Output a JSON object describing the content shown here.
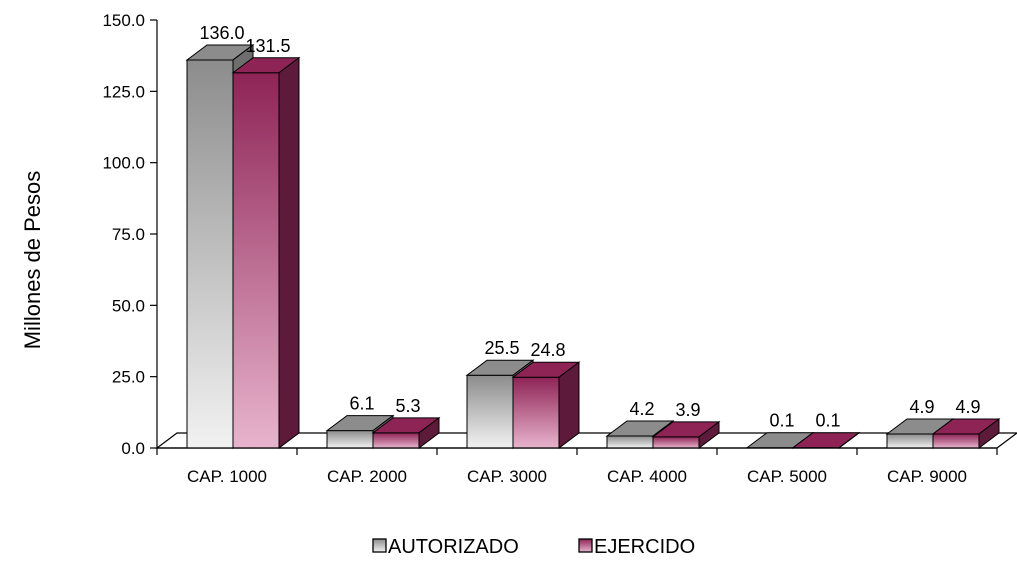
{
  "chart_data": {
    "type": "bar",
    "ylabel": "Millones de Pesos",
    "ylim": [
      0,
      150
    ],
    "yticks": [
      "0.0",
      "25.0",
      "50.0",
      "75.0",
      "100.0",
      "125.0",
      "150.0"
    ],
    "categories": [
      "CAP. 1000",
      "CAP. 2000",
      "CAP. 3000",
      "CAP. 4000",
      "CAP. 5000",
      "CAP. 9000"
    ],
    "series": [
      {
        "name": "AUTORIZADO",
        "values": [
          136.0,
          6.1,
          25.5,
          4.2,
          0.1,
          4.9
        ],
        "labels": [
          "136.0",
          "6.1",
          "25.5",
          "4.2",
          "0.1",
          "4.9"
        ],
        "color_top": "#8c8c8c",
        "color_bottom": "#f2f2f2",
        "color_side": "#6e6e6e"
      },
      {
        "name": "EJERCIDO",
        "values": [
          131.5,
          5.3,
          24.8,
          3.9,
          0.1,
          4.9
        ],
        "labels": [
          "131.5",
          "5.3",
          "24.8",
          "3.9",
          "0.1",
          "4.9"
        ],
        "color_top": "#8e2456",
        "color_bottom": "#e8b4cd",
        "color_side": "#5e1a3a"
      }
    ],
    "legend": {
      "position": "bottom-center"
    },
    "style": "3d-clustered-column",
    "grid": false
  }
}
